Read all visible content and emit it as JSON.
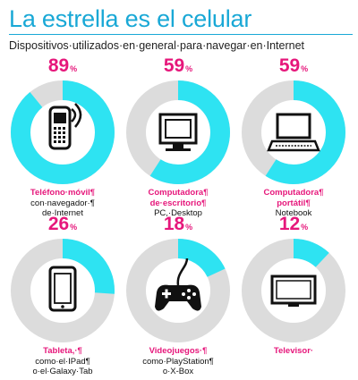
{
  "title": "La estrella es el celular",
  "subtitle": "Dispositivos·utilizados·en·general·para·navegar·en·Internet",
  "colors": {
    "accent": "#19a8d6",
    "ring": "#2ee3f2",
    "ring_bg": "#dcdcdc",
    "pink": "#e6177b"
  },
  "chart_data": {
    "type": "donut-grid",
    "title": "La estrella es el celular",
    "unit": "%",
    "items": [
      {
        "value": 89,
        "pct_symbol": "%",
        "icon": "mobile-phone-icon",
        "label_bold": "Teléfono·móvil¶",
        "label_lines": [
          "con·navegador·¶",
          "de·Internet"
        ]
      },
      {
        "value": 59,
        "pct_symbol": "%",
        "icon": "desktop-computer-icon",
        "label_bold": "Computadora¶",
        "label_bold2": "de·escritorio¶",
        "label_lines": [
          "PC,·Desktop"
        ]
      },
      {
        "value": 59,
        "pct_symbol": "%",
        "icon": "laptop-icon",
        "label_bold": "Computadora¶",
        "label_bold2": "portátil¶",
        "label_lines": [
          "Notebook"
        ]
      },
      {
        "value": 26,
        "pct_symbol": "%",
        "icon": "tablet-icon",
        "label_bold": "Tableta,·¶",
        "label_lines": [
          "como·el·IPad¶",
          "o·el·Galaxy·Tab"
        ]
      },
      {
        "value": 18,
        "pct_symbol": "%",
        "icon": "gamepad-icon",
        "label_bold": "Videojuegos·¶",
        "label_lines": [
          "como·PlayStation¶",
          "o·X-Box"
        ]
      },
      {
        "value": 12,
        "pct_symbol": "%",
        "icon": "television-icon",
        "label_bold": "Televisor·",
        "label_lines": []
      }
    ]
  }
}
